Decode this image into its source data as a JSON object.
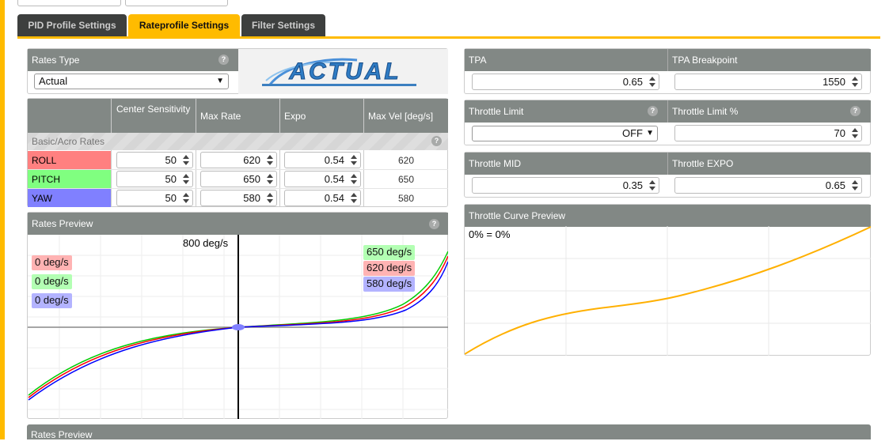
{
  "tabs": [
    "PID Profile Settings",
    "Rateprofile Settings",
    "Filter Settings"
  ],
  "rates_type": {
    "label": "Rates Type",
    "selected": "Actual",
    "logo": "ACTUAL"
  },
  "rates_table": {
    "headers": [
      "Center Sensitivity",
      "Max Rate",
      "Expo",
      "Max Vel [deg/s]"
    ],
    "section": "Basic/Acro Rates",
    "rows": [
      {
        "axis": "ROLL",
        "center": "50",
        "max_rate": "620",
        "expo": "0.54",
        "max_vel": "620"
      },
      {
        "axis": "PITCH",
        "center": "50",
        "max_rate": "650",
        "expo": "0.54",
        "max_vel": "650"
      },
      {
        "axis": "YAW",
        "center": "50",
        "max_rate": "580",
        "expo": "0.54",
        "max_vel": "580"
      }
    ]
  },
  "rates_preview": {
    "title": "Rates Preview",
    "axis_label": "800 deg/s",
    "left_labels": [
      "0 deg/s",
      "0 deg/s",
      "0 deg/s"
    ],
    "right_labels": [
      "650 deg/s",
      "620 deg/s",
      "580 deg/s"
    ]
  },
  "tpa": {
    "headers": [
      "TPA",
      "TPA Breakpoint"
    ],
    "values": [
      "0.65",
      "1550"
    ]
  },
  "throttle_limit": {
    "headers": [
      "Throttle Limit",
      "Throttle Limit %"
    ],
    "values": [
      "OFF",
      "70"
    ]
  },
  "throttle_mid": {
    "headers": [
      "Throttle MID",
      "Throttle EXPO"
    ],
    "values": [
      "0.35",
      "0.65"
    ]
  },
  "throttle_curve": {
    "title": "Throttle Curve Preview",
    "label": "0% = 0%"
  },
  "bottom_panel": {
    "title": "Rates Preview"
  }
}
